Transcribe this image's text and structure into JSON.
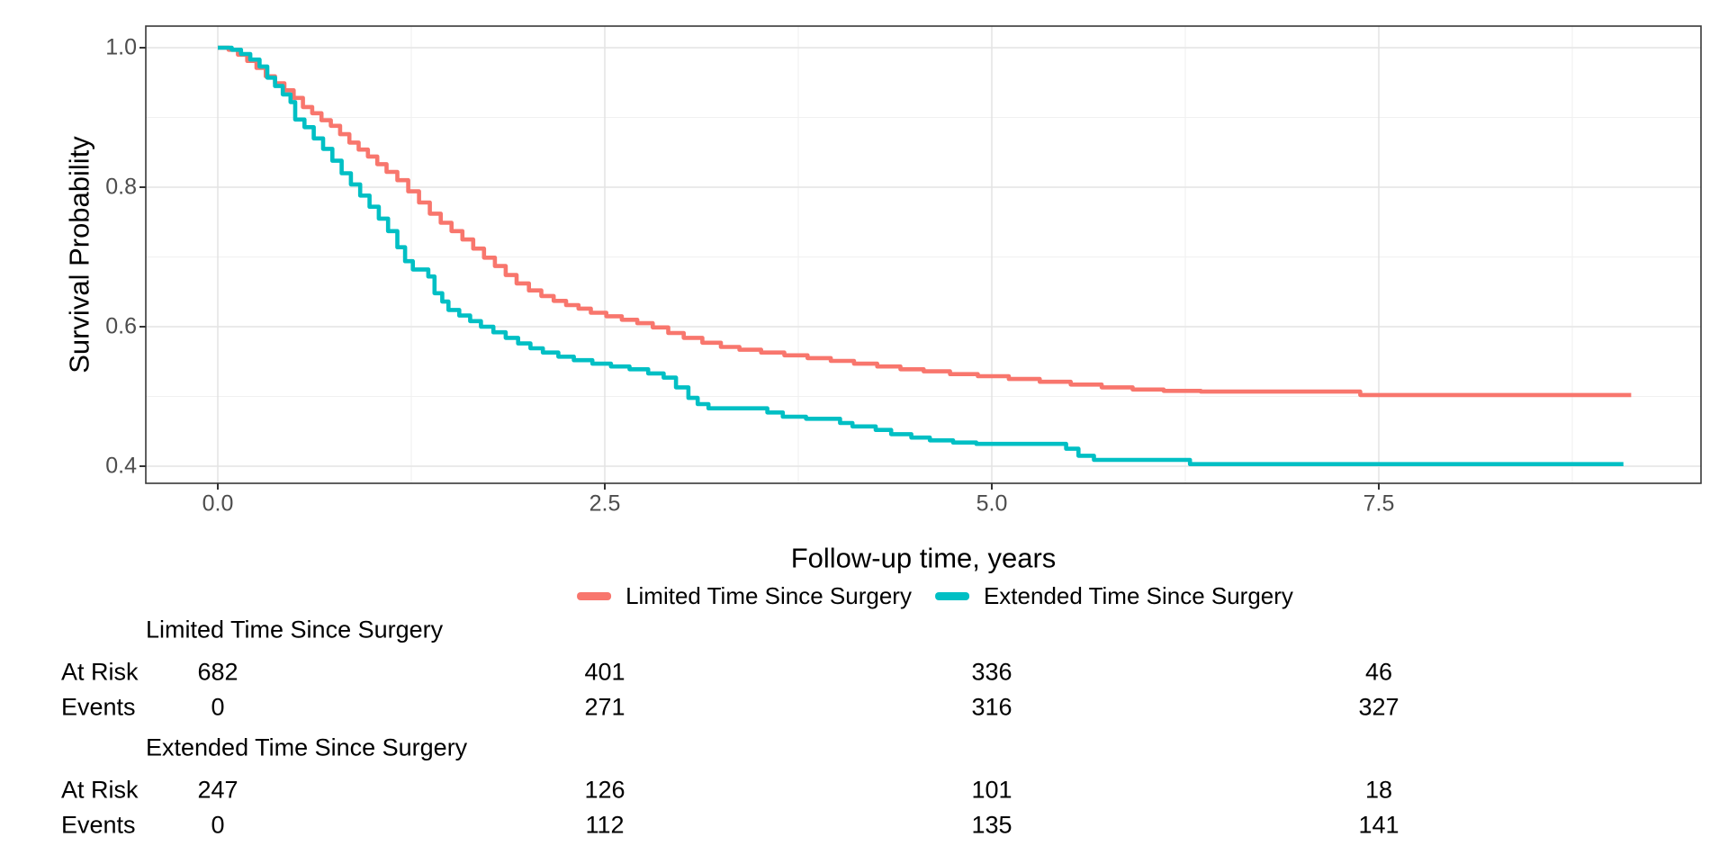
{
  "figure": {
    "background": "#ffffff"
  },
  "chart_data": {
    "type": "line",
    "subtype": "kaplan-meier-step",
    "title": "",
    "xlabel": "Follow-up time, years",
    "ylabel": "Survival Probability",
    "xlim": [
      -0.47,
      9.58
    ],
    "ylim": [
      0.375,
      1.031
    ],
    "grid": "major+minor",
    "legend_position": "bottom-center",
    "panel_border": true,
    "x_major_ticks": [
      0.0,
      2.5,
      5.0,
      7.5
    ],
    "x_tick_labels": [
      "0.0",
      "2.5",
      "5.0",
      "7.5"
    ],
    "x_minor_ticks": [
      1.25,
      3.75,
      6.25,
      8.75
    ],
    "y_major_ticks": [
      0.4,
      0.6,
      0.8,
      1.0
    ],
    "y_tick_labels": [
      "0.4",
      "0.6",
      "0.8",
      "1.0"
    ],
    "y_minor_ticks": [
      0.5,
      0.7,
      0.9
    ],
    "colors": {
      "grid_major": "#e4e4e4",
      "grid_minor": "#f0f0f0",
      "panel_border": "#383838",
      "tick_mark": "#333333",
      "tick_label": "#4d4d4d",
      "series_1": "#F8766D",
      "series_2": "#00BFC4"
    },
    "series": [
      {
        "name": "Limited Time Since Surgery",
        "color": "#F8766D",
        "points": [
          [
            0.0,
            1.0
          ],
          [
            0.07,
            0.997
          ],
          [
            0.13,
            0.99
          ],
          [
            0.19,
            0.981
          ],
          [
            0.25,
            0.971
          ],
          [
            0.31,
            0.959
          ],
          [
            0.37,
            0.949
          ],
          [
            0.43,
            0.939
          ],
          [
            0.49,
            0.928
          ],
          [
            0.55,
            0.915
          ],
          [
            0.61,
            0.906
          ],
          [
            0.67,
            0.896
          ],
          [
            0.73,
            0.888
          ],
          [
            0.79,
            0.876
          ],
          [
            0.85,
            0.864
          ],
          [
            0.91,
            0.854
          ],
          [
            0.97,
            0.844
          ],
          [
            1.03,
            0.833
          ],
          [
            1.09,
            0.822
          ],
          [
            1.16,
            0.81
          ],
          [
            1.23,
            0.794
          ],
          [
            1.3,
            0.778
          ],
          [
            1.37,
            0.762
          ],
          [
            1.44,
            0.749
          ],
          [
            1.51,
            0.737
          ],
          [
            1.58,
            0.725
          ],
          [
            1.65,
            0.712
          ],
          [
            1.72,
            0.699
          ],
          [
            1.79,
            0.687
          ],
          [
            1.86,
            0.674
          ],
          [
            1.93,
            0.662
          ],
          [
            2.01,
            0.652
          ],
          [
            2.09,
            0.644
          ],
          [
            2.17,
            0.637
          ],
          [
            2.25,
            0.631
          ],
          [
            2.33,
            0.626
          ],
          [
            2.41,
            0.62
          ],
          [
            2.51,
            0.615
          ],
          [
            2.61,
            0.61
          ],
          [
            2.71,
            0.605
          ],
          [
            2.81,
            0.599
          ],
          [
            2.91,
            0.591
          ],
          [
            3.01,
            0.584
          ],
          [
            3.13,
            0.577
          ],
          [
            3.25,
            0.571
          ],
          [
            3.37,
            0.567
          ],
          [
            3.51,
            0.563
          ],
          [
            3.66,
            0.559
          ],
          [
            3.81,
            0.555
          ],
          [
            3.96,
            0.551
          ],
          [
            4.11,
            0.547
          ],
          [
            4.26,
            0.543
          ],
          [
            4.41,
            0.539
          ],
          [
            4.56,
            0.536
          ],
          [
            4.73,
            0.532
          ],
          [
            4.91,
            0.529
          ],
          [
            5.11,
            0.525
          ],
          [
            5.31,
            0.521
          ],
          [
            5.51,
            0.517
          ],
          [
            5.71,
            0.513
          ],
          [
            5.91,
            0.51
          ],
          [
            6.11,
            0.508
          ],
          [
            6.35,
            0.507
          ],
          [
            7.38,
            0.502
          ],
          [
            9.13,
            0.502
          ]
        ]
      },
      {
        "name": "Extended Time Since Surgery",
        "color": "#00BFC4",
        "points": [
          [
            0.0,
            1.0
          ],
          [
            0.09,
            0.997
          ],
          [
            0.15,
            0.991
          ],
          [
            0.21,
            0.983
          ],
          [
            0.27,
            0.973
          ],
          [
            0.32,
            0.957
          ],
          [
            0.37,
            0.945
          ],
          [
            0.42,
            0.933
          ],
          [
            0.47,
            0.922
          ],
          [
            0.5,
            0.897
          ],
          [
            0.56,
            0.886
          ],
          [
            0.62,
            0.87
          ],
          [
            0.68,
            0.855
          ],
          [
            0.74,
            0.838
          ],
          [
            0.8,
            0.82
          ],
          [
            0.86,
            0.804
          ],
          [
            0.92,
            0.788
          ],
          [
            0.98,
            0.772
          ],
          [
            1.04,
            0.755
          ],
          [
            1.1,
            0.737
          ],
          [
            1.16,
            0.714
          ],
          [
            1.21,
            0.694
          ],
          [
            1.26,
            0.682
          ],
          [
            1.36,
            0.672
          ],
          [
            1.4,
            0.648
          ],
          [
            1.45,
            0.636
          ],
          [
            1.49,
            0.624
          ],
          [
            1.56,
            0.616
          ],
          [
            1.63,
            0.608
          ],
          [
            1.7,
            0.6
          ],
          [
            1.78,
            0.592
          ],
          [
            1.86,
            0.584
          ],
          [
            1.94,
            0.576
          ],
          [
            2.02,
            0.569
          ],
          [
            2.1,
            0.563
          ],
          [
            2.2,
            0.557
          ],
          [
            2.3,
            0.552
          ],
          [
            2.42,
            0.547
          ],
          [
            2.54,
            0.543
          ],
          [
            2.66,
            0.539
          ],
          [
            2.78,
            0.533
          ],
          [
            2.88,
            0.527
          ],
          [
            2.96,
            0.513
          ],
          [
            3.04,
            0.498
          ],
          [
            3.1,
            0.489
          ],
          [
            3.17,
            0.483
          ],
          [
            3.55,
            0.477
          ],
          [
            3.65,
            0.471
          ],
          [
            3.8,
            0.468
          ],
          [
            4.02,
            0.462
          ],
          [
            4.1,
            0.457
          ],
          [
            4.25,
            0.452
          ],
          [
            4.35,
            0.446
          ],
          [
            4.48,
            0.441
          ],
          [
            4.6,
            0.437
          ],
          [
            4.75,
            0.434
          ],
          [
            4.9,
            0.432
          ],
          [
            5.48,
            0.425
          ],
          [
            5.56,
            0.415
          ],
          [
            5.66,
            0.409
          ],
          [
            6.28,
            0.403
          ],
          [
            9.08,
            0.403
          ]
        ]
      }
    ]
  },
  "legend": {
    "items": [
      {
        "label": "Limited Time Since Surgery",
        "color": "#F8766D"
      },
      {
        "label": "Extended Time Since Surgery",
        "color": "#00BFC4"
      }
    ]
  },
  "risk_table": {
    "row_labels": [
      "At Risk",
      "Events"
    ],
    "time_points": [
      "0.0",
      "2.5",
      "5.0",
      "7.5"
    ],
    "groups": [
      {
        "name": "Limited Time Since Surgery",
        "at_risk": [
          "682",
          "401",
          "336",
          "46"
        ],
        "events": [
          "0",
          "271",
          "316",
          "327"
        ]
      },
      {
        "name": "Extended Time Since Surgery",
        "at_risk": [
          "247",
          "126",
          "101",
          "18"
        ],
        "events": [
          "0",
          "112",
          "135",
          "141"
        ]
      }
    ]
  }
}
